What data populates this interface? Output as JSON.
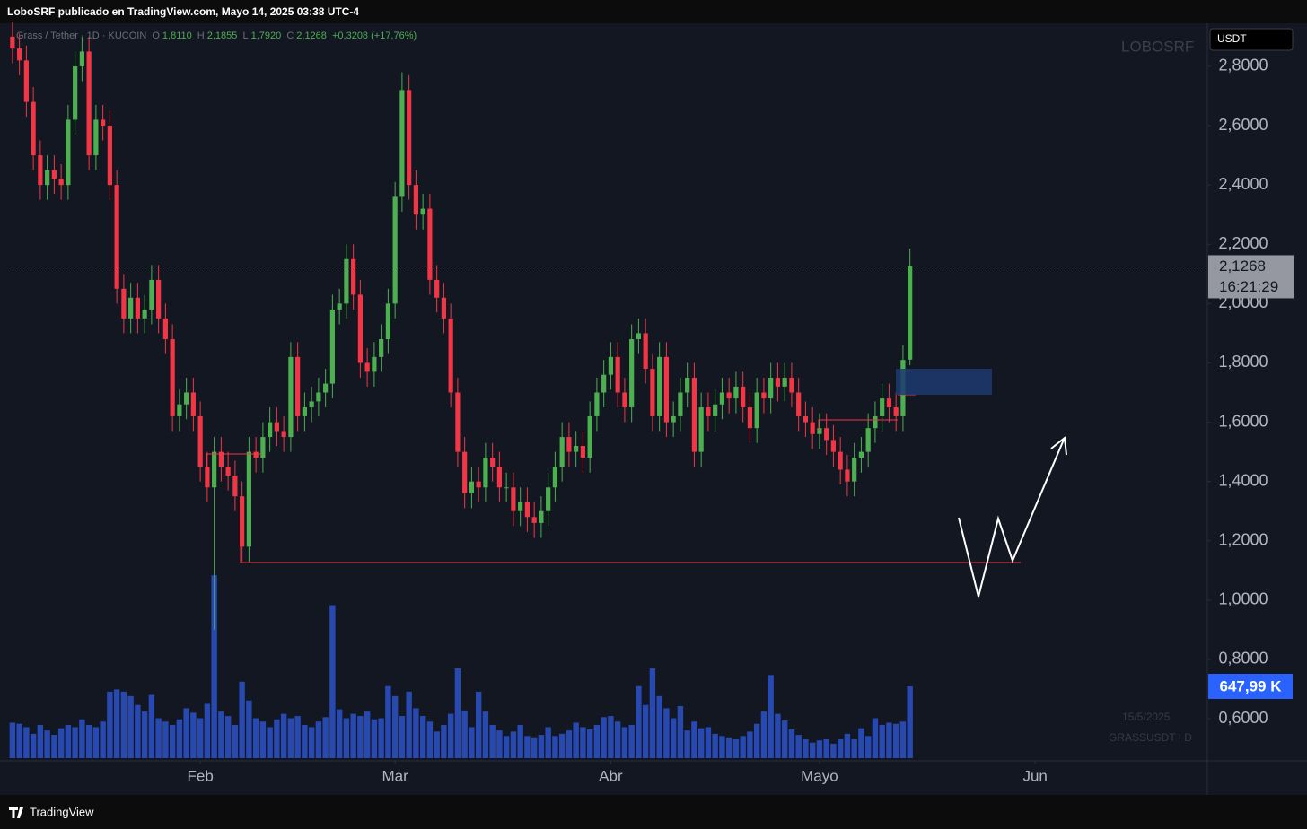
{
  "header": {
    "publisher": "LoboSRF publicado en TradingView.com, Mayo 14, 2025 03:38 UTC-4",
    "symbol": "Grass / Tether · 1D · KUCOIN",
    "o_label": "O",
    "o_value": "1,8110",
    "h_label": "H",
    "h_value": "2,1855",
    "l_label": "L",
    "l_value": "1,7920",
    "c_label": "C",
    "c_value": "2,1268",
    "change": "+0,3208 (+17,76%)",
    "watermark": "LOBOSRF",
    "currency": "USDT",
    "countdown": "16:21:29",
    "date_note": "15/5/2025",
    "ticker_note": "GRASSUSDT | D",
    "footer": "TradingView"
  },
  "chart_data": {
    "type": "candlestick",
    "open": [
      2.9,
      2.86,
      2.82,
      2.68,
      2.5,
      2.4,
      2.45,
      2.42,
      2.4,
      2.62,
      2.8,
      2.85,
      2.5,
      2.62,
      2.6,
      2.4,
      2.05,
      1.95,
      2.02,
      1.95,
      1.98,
      2.08,
      1.95,
      1.88,
      1.62,
      1.66,
      1.7,
      1.62,
      1.45,
      1.38,
      1.5,
      1.45,
      1.42,
      1.35,
      1.18,
      1.5,
      1.48,
      1.55,
      1.6,
      1.57,
      1.55,
      1.82,
      1.62,
      1.65,
      1.67,
      1.7,
      1.73,
      1.98,
      2.0,
      2.15,
      2.03,
      1.8,
      1.77,
      1.82,
      1.88,
      2.0,
      2.36,
      2.72,
      2.4,
      2.3,
      2.32,
      2.08,
      2.02,
      1.95,
      1.7,
      1.5,
      1.36,
      1.4,
      1.38,
      1.48,
      1.45,
      1.38,
      1.38,
      1.3,
      1.33,
      1.28,
      1.26,
      1.3,
      1.38,
      1.45,
      1.55,
      1.5,
      1.52,
      1.48,
      1.62,
      1.7,
      1.76,
      1.82,
      1.7,
      1.65,
      1.88,
      1.9,
      1.78,
      1.62,
      1.82,
      1.6,
      1.62,
      1.7,
      1.75,
      1.5,
      1.65,
      1.62,
      1.66,
      1.7,
      1.68,
      1.72,
      1.65,
      1.58,
      1.7,
      1.68,
      1.75,
      1.72,
      1.75,
      1.7,
      1.62,
      1.6,
      1.56,
      1.58,
      1.54,
      1.5,
      1.44,
      1.4,
      1.48,
      1.5,
      1.58,
      1.62,
      1.68,
      1.65,
      1.62,
      1.811
    ],
    "high": [
      2.95,
      2.91,
      2.87,
      2.73,
      2.55,
      2.5,
      2.5,
      2.47,
      2.67,
      2.85,
      2.9,
      2.9,
      2.67,
      2.67,
      2.65,
      2.45,
      2.1,
      2.07,
      2.07,
      2.03,
      2.13,
      2.13,
      2.0,
      1.93,
      1.71,
      1.75,
      1.75,
      1.67,
      1.5,
      1.55,
      1.55,
      1.5,
      1.47,
      1.4,
      1.55,
      1.55,
      1.6,
      1.65,
      1.65,
      1.62,
      1.87,
      1.87,
      1.7,
      1.72,
      1.75,
      1.78,
      2.03,
      2.05,
      2.2,
      2.2,
      2.08,
      1.85,
      1.87,
      1.93,
      2.05,
      2.41,
      2.78,
      2.77,
      2.45,
      2.37,
      2.37,
      2.13,
      2.07,
      2.0,
      1.75,
      1.55,
      1.45,
      1.45,
      1.53,
      1.53,
      1.5,
      1.43,
      1.43,
      1.38,
      1.38,
      1.33,
      1.35,
      1.43,
      1.5,
      1.6,
      1.6,
      1.57,
      1.57,
      1.67,
      1.75,
      1.81,
      1.87,
      1.87,
      1.75,
      1.93,
      1.95,
      1.95,
      1.83,
      1.87,
      1.87,
      1.67,
      1.75,
      1.8,
      1.8,
      1.7,
      1.7,
      1.71,
      1.75,
      1.75,
      1.77,
      1.77,
      1.7,
      1.75,
      1.75,
      1.8,
      1.8,
      1.8,
      1.8,
      1.75,
      1.67,
      1.65,
      1.63,
      1.63,
      1.59,
      1.55,
      1.49,
      1.53,
      1.55,
      1.63,
      1.67,
      1.73,
      1.73,
      1.7,
      1.86,
      2.1855
    ],
    "low": [
      2.81,
      2.77,
      2.63,
      2.45,
      2.35,
      2.35,
      2.37,
      2.35,
      2.35,
      2.57,
      2.75,
      2.45,
      2.45,
      2.55,
      2.35,
      2.0,
      1.9,
      1.9,
      1.9,
      1.9,
      1.93,
      1.9,
      1.83,
      1.57,
      1.57,
      1.61,
      1.57,
      1.4,
      1.33,
      0.9,
      1.4,
      1.37,
      1.3,
      1.13,
      1.13,
      1.43,
      1.43,
      1.5,
      1.52,
      1.5,
      1.5,
      1.57,
      1.57,
      1.6,
      1.62,
      1.65,
      1.68,
      1.93,
      1.95,
      1.98,
      1.75,
      1.72,
      1.72,
      1.77,
      1.83,
      1.95,
      2.31,
      2.35,
      2.25,
      2.25,
      2.03,
      1.97,
      1.9,
      1.65,
      1.45,
      1.31,
      1.31,
      1.33,
      1.33,
      1.4,
      1.33,
      1.33,
      1.25,
      1.25,
      1.23,
      1.21,
      1.21,
      1.25,
      1.33,
      1.4,
      1.45,
      1.45,
      1.43,
      1.43,
      1.57,
      1.65,
      1.71,
      1.65,
      1.6,
      1.6,
      1.83,
      1.73,
      1.57,
      1.57,
      1.55,
      1.55,
      1.57,
      1.65,
      1.45,
      1.45,
      1.57,
      1.57,
      1.61,
      1.63,
      1.63,
      1.6,
      1.53,
      1.53,
      1.63,
      1.63,
      1.67,
      1.67,
      1.65,
      1.57,
      1.55,
      1.51,
      1.51,
      1.49,
      1.45,
      1.39,
      1.35,
      1.35,
      1.43,
      1.45,
      1.53,
      1.57,
      1.6,
      1.57,
      1.57,
      1.792
    ],
    "close": [
      2.86,
      2.82,
      2.68,
      2.5,
      2.4,
      2.45,
      2.42,
      2.4,
      2.62,
      2.8,
      2.85,
      2.5,
      2.62,
      2.6,
      2.4,
      2.05,
      1.95,
      2.02,
      1.95,
      1.98,
      2.08,
      1.95,
      1.88,
      1.62,
      1.66,
      1.7,
      1.62,
      1.45,
      1.38,
      1.5,
      1.45,
      1.42,
      1.35,
      1.18,
      1.5,
      1.48,
      1.55,
      1.6,
      1.57,
      1.55,
      1.82,
      1.62,
      1.65,
      1.67,
      1.7,
      1.73,
      1.98,
      2.0,
      2.15,
      2.03,
      1.8,
      1.77,
      1.82,
      1.88,
      2.0,
      2.36,
      2.72,
      2.4,
      2.3,
      2.32,
      2.08,
      2.02,
      1.95,
      1.7,
      1.5,
      1.36,
      1.4,
      1.38,
      1.48,
      1.45,
      1.38,
      1.38,
      1.3,
      1.33,
      1.28,
      1.26,
      1.3,
      1.38,
      1.45,
      1.55,
      1.5,
      1.52,
      1.48,
      1.62,
      1.7,
      1.76,
      1.82,
      1.7,
      1.65,
      1.88,
      1.9,
      1.78,
      1.62,
      1.82,
      1.6,
      1.62,
      1.7,
      1.75,
      1.5,
      1.65,
      1.62,
      1.66,
      1.7,
      1.68,
      1.72,
      1.65,
      1.58,
      1.7,
      1.68,
      1.75,
      1.72,
      1.75,
      1.7,
      1.62,
      1.6,
      1.56,
      1.58,
      1.54,
      1.5,
      1.44,
      1.4,
      1.48,
      1.5,
      1.58,
      1.62,
      1.68,
      1.65,
      1.62,
      1.81,
      2.1268
    ],
    "last_label": "2,1268",
    "volume": [
      320,
      310,
      280,
      220,
      300,
      250,
      210,
      270,
      300,
      280,
      350,
      300,
      280,
      330,
      600,
      620,
      600,
      560,
      480,
      420,
      570,
      360,
      330,
      300,
      350,
      450,
      410,
      360,
      490,
      1650,
      420,
      380,
      300,
      690,
      520,
      360,
      330,
      280,
      350,
      400,
      360,
      380,
      300,
      280,
      330,
      370,
      1380,
      440,
      360,
      400,
      380,
      420,
      350,
      360,
      650,
      560,
      380,
      600,
      450,
      380,
      330,
      240,
      300,
      400,
      810,
      430,
      280,
      600,
      420,
      300,
      250,
      200,
      240,
      300,
      200,
      180,
      210,
      280,
      200,
      220,
      250,
      320,
      280,
      260,
      300,
      370,
      380,
      330,
      280,
      300,
      650,
      480,
      810,
      560,
      450,
      360,
      470,
      250,
      330,
      270,
      280,
      220,
      200,
      180,
      170,
      200,
      240,
      310,
      420,
      750,
      400,
      340,
      260,
      210,
      170,
      140,
      160,
      170,
      130,
      170,
      220,
      170,
      270,
      200,
      360,
      300,
      320,
      310,
      330,
      647.99
    ],
    "volume_last_label": "647,99 K",
    "up_color": "#4caf50",
    "down_color": "#f23645",
    "volume_color": "#2b4fbf",
    "xlim": [
      -0.5,
      171.75
    ],
    "xticks": [
      {
        "value": 27,
        "label": "Feb"
      },
      {
        "value": 55,
        "label": "Mar"
      },
      {
        "value": 86,
        "label": "Abr"
      },
      {
        "value": 116,
        "label": "Mayo"
      },
      {
        "value": 147,
        "label": "Jun"
      }
    ],
    "ylim": [
      0.458,
      2.939
    ],
    "yticks": [
      {
        "value": 0.6,
        "label": "0,6000"
      },
      {
        "value": 0.8,
        "label": "0,8000"
      },
      {
        "value": 1.0,
        "label": "1,0000"
      },
      {
        "value": 1.2,
        "label": "1,2000"
      },
      {
        "value": 1.4,
        "label": "1,4000"
      },
      {
        "value": 1.6,
        "label": "1,6000"
      },
      {
        "value": 1.8,
        "label": "1,8000"
      },
      {
        "value": 2.0,
        "label": "2,0000"
      },
      {
        "value": 2.2,
        "label": "2,2000"
      },
      {
        "value": 2.4,
        "label": "2,4000"
      },
      {
        "value": 2.6,
        "label": "2,6000"
      },
      {
        "value": 2.8,
        "label": "2,8000"
      }
    ],
    "vlim": [
      0,
      2000
    ],
    "grid": false
  }
}
